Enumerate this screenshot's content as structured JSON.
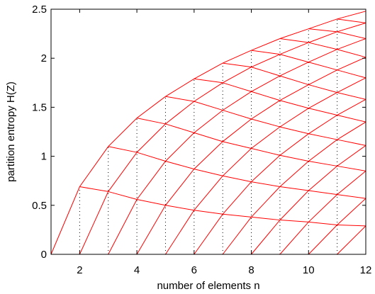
{
  "chart_data": {
    "type": "line",
    "xlabel": "number of elements n",
    "ylabel": "partition entropy H(Z)",
    "xlim": [
      1,
      12
    ],
    "ylim": [
      0,
      2.5
    ],
    "x_ticks": [
      2,
      4,
      6,
      8,
      10,
      12
    ],
    "y_ticks": [
      0,
      0.5,
      1,
      1.5,
      2,
      2.5
    ],
    "x_tick_labels": [
      "2",
      "4",
      "6",
      "8",
      "10",
      "12"
    ],
    "y_tick_labels": [
      "0",
      "0.5",
      "1",
      "1.5",
      "2",
      "2.5"
    ],
    "grid": false,
    "line_color": "#ff0000",
    "dotted_color": "#000000",
    "series": [
      {
        "x": [
          1,
          2,
          3,
          4,
          5,
          6,
          7,
          8,
          9,
          10,
          11,
          12
        ],
        "y": [
          0,
          0.69,
          1.1,
          1.39,
          1.61,
          1.79,
          1.95,
          2.08,
          2.2,
          2.3,
          2.4,
          2.48
        ]
      },
      {
        "x": [
          2,
          3,
          4,
          5,
          6,
          7,
          8,
          9,
          10,
          11,
          12
        ],
        "y": [
          0,
          0.64,
          1.04,
          1.33,
          1.56,
          1.75,
          1.91,
          2.04,
          2.16,
          2.27,
          2.36
        ]
      },
      {
        "x": [
          3,
          4,
          5,
          6,
          7,
          8,
          9,
          10,
          11,
          12
        ],
        "y": [
          0,
          0.56,
          0.95,
          1.24,
          1.47,
          1.66,
          1.82,
          1.96,
          2.09,
          2.2
        ]
      },
      {
        "x": [
          4,
          5,
          6,
          7,
          8,
          9,
          10,
          11,
          12
        ],
        "y": [
          0,
          0.5,
          0.87,
          1.15,
          1.38,
          1.57,
          1.73,
          1.88,
          2.01
        ]
      },
      {
        "x": [
          5,
          6,
          7,
          8,
          9,
          10,
          11,
          12
        ],
        "y": [
          0,
          0.45,
          0.8,
          1.08,
          1.3,
          1.49,
          1.65,
          1.8
        ]
      },
      {
        "x": [
          6,
          7,
          8,
          9,
          10,
          11,
          12
        ],
        "y": [
          0,
          0.41,
          0.74,
          1.01,
          1.23,
          1.42,
          1.58
        ]
      },
      {
        "x": [
          7,
          8,
          9,
          10,
          11,
          12
        ],
        "y": [
          0,
          0.38,
          0.69,
          0.95,
          1.17,
          1.35
        ]
      },
      {
        "x": [
          8,
          9,
          10,
          11,
          12
        ],
        "y": [
          0,
          0.35,
          0.65,
          0.9,
          1.11
        ]
      },
      {
        "x": [
          9,
          10,
          11,
          12
        ],
        "y": [
          0,
          0.33,
          0.61,
          0.85
        ]
      },
      {
        "x": [
          10,
          11,
          12
        ],
        "y": [
          0,
          0.3,
          0.57
        ]
      },
      {
        "x": [
          11,
          12
        ],
        "y": [
          0,
          0.29
        ]
      },
      {
        "x": [
          1,
          12
        ],
        "y": [
          0,
          0
        ]
      }
    ]
  }
}
